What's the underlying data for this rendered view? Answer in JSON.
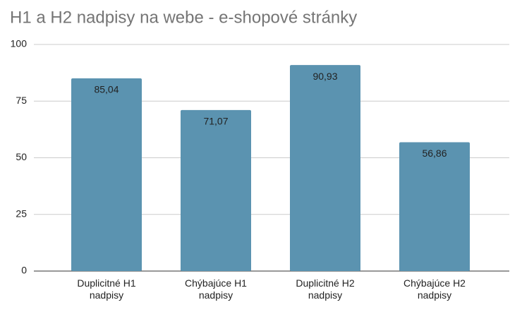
{
  "chart_data": {
    "type": "bar",
    "title": "H1 a H2 nadpisy na webe - e-shopové stránky",
    "categories": [
      "Duplicitné H1 nadpisy",
      "Chýbajúce H1 nadpisy",
      "Duplicitné H2 nadpisy",
      "Chýbajúce H2 nadpisy"
    ],
    "values": [
      85.04,
      71.07,
      90.93,
      56.86
    ],
    "value_labels": [
      "85,04",
      "71,07",
      "90,93",
      "56,86"
    ],
    "color": "#5b93b0",
    "ylim": [
      0,
      100
    ],
    "yticks": [
      0,
      25,
      50,
      75,
      100
    ],
    "grid": true
  }
}
